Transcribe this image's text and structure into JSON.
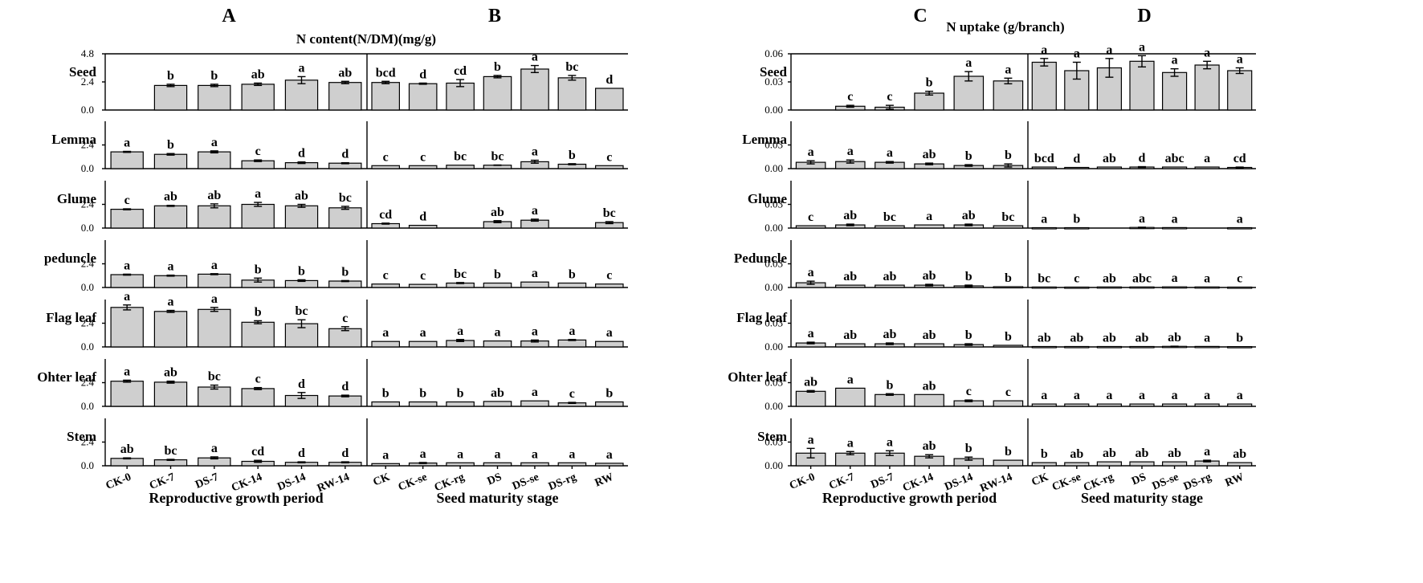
{
  "chart_data": [
    {
      "type": "bar",
      "panel": "A",
      "title": "N content(N/DM)(mg/g)",
      "xlabel": "Reproductive growth period",
      "categories": [
        "CK-0",
        "CK-7",
        "DS-7",
        "CK-14",
        "DS-14",
        "RW-14"
      ],
      "rows": [
        {
          "name": "Seed",
          "ylim": [
            0,
            4.8
          ],
          "ticks": [
            "4.8",
            "2.4",
            "0.0"
          ],
          "values": [
            0,
            2.1,
            2.1,
            2.2,
            2.55,
            2.35
          ],
          "errors": [
            0,
            0.1,
            0.1,
            0.1,
            0.3,
            0.1
          ],
          "labels": [
            "",
            "b",
            "b",
            "ab",
            "a",
            "ab"
          ]
        },
        {
          "name": "Lemma",
          "ylim": [
            0,
            4.8
          ],
          "ticks": [
            "2.4",
            "0.0"
          ],
          "values": [
            1.7,
            1.45,
            1.7,
            0.8,
            0.6,
            0.55
          ],
          "errors": [
            0.05,
            0.08,
            0.1,
            0.08,
            0.08,
            0.05
          ],
          "labels": [
            "a",
            "b",
            "a",
            "c",
            "d",
            "d"
          ]
        },
        {
          "name": "Glume",
          "ylim": [
            0,
            4.8
          ],
          "ticks": [
            "2.4",
            "0.0"
          ],
          "values": [
            1.9,
            2.25,
            2.25,
            2.4,
            2.25,
            2.05
          ],
          "errors": [
            0.05,
            0.05,
            0.2,
            0.2,
            0.15,
            0.15
          ],
          "labels": [
            "c",
            "ab",
            "ab",
            "a",
            "ab",
            "bc"
          ]
        },
        {
          "name": "peduncle",
          "ylim": [
            0,
            4.8
          ],
          "ticks": [
            "2.4",
            "0.0"
          ],
          "values": [
            1.3,
            1.2,
            1.35,
            0.75,
            0.7,
            0.65
          ],
          "errors": [
            0.05,
            0.05,
            0.05,
            0.2,
            0.08,
            0.05
          ],
          "labels": [
            "a",
            "a",
            "a",
            "b",
            "b",
            "b"
          ]
        },
        {
          "name": "Flag leaf",
          "ylim": [
            0,
            4.8
          ],
          "ticks": [
            "2.4",
            "0.0"
          ],
          "values": [
            4.0,
            3.6,
            3.8,
            2.5,
            2.35,
            1.85
          ],
          "errors": [
            0.25,
            0.1,
            0.2,
            0.15,
            0.4,
            0.2
          ],
          "labels": [
            "a",
            "a",
            "a",
            "b",
            "bc",
            "c"
          ]
        },
        {
          "name": "Ohter leaf",
          "ylim": [
            0,
            4.8
          ],
          "ticks": [
            "2.4",
            "0.0"
          ],
          "values": [
            2.55,
            2.45,
            1.95,
            1.8,
            1.1,
            1.05
          ],
          "errors": [
            0.1,
            0.1,
            0.2,
            0.1,
            0.3,
            0.08
          ],
          "labels": [
            "a",
            "ab",
            "bc",
            "c",
            "d",
            "d"
          ]
        },
        {
          "name": "Stem",
          "ylim": [
            0,
            4.8
          ],
          "ticks": [
            "2.4",
            "0.0"
          ],
          "values": [
            0.75,
            0.6,
            0.8,
            0.45,
            0.35,
            0.35
          ],
          "errors": [
            0.05,
            0.05,
            0.1,
            0.1,
            0.05,
            0.05
          ],
          "labels": [
            "ab",
            "bc",
            "a",
            "cd",
            "d",
            "d"
          ]
        }
      ]
    },
    {
      "type": "bar",
      "panel": "B",
      "title": "",
      "xlabel": "Seed maturity stage",
      "categories": [
        "CK",
        "CK-se",
        "CK-rg",
        "DS",
        "DS-se",
        "DS-rg",
        "RW"
      ],
      "rows": [
        {
          "name": "Seed",
          "ylim": [
            0,
            4.8
          ],
          "values": [
            2.35,
            2.25,
            2.3,
            2.85,
            3.5,
            2.75,
            1.85
          ],
          "errors": [
            0.1,
            0.05,
            0.3,
            0.1,
            0.3,
            0.2,
            0
          ],
          "labels": [
            "bcd",
            "d",
            "cd",
            "b",
            "a",
            "bc",
            "d"
          ]
        },
        {
          "name": "Lemma",
          "ylim": [
            0,
            4.8
          ],
          "values": [
            0.3,
            0.3,
            0.35,
            0.35,
            0.7,
            0.45,
            0.3
          ],
          "errors": [
            0,
            0,
            0,
            0.02,
            0.15,
            0.05,
            0
          ],
          "labels": [
            "c",
            "c",
            "bc",
            "bc",
            "a",
            "b",
            "c"
          ]
        },
        {
          "name": "Glume",
          "ylim": [
            0,
            4.8
          ],
          "values": [
            0.45,
            0.28,
            0,
            0.65,
            0.8,
            0,
            0.55
          ],
          "errors": [
            0.05,
            0,
            0,
            0.1,
            0.1,
            0,
            0.1
          ],
          "labels": [
            "cd",
            "d",
            "",
            "ab",
            "a",
            "",
            "bc"
          ]
        },
        {
          "name": "peduncle",
          "ylim": [
            0,
            4.8
          ],
          "values": [
            0.35,
            0.32,
            0.45,
            0.45,
            0.55,
            0.45,
            0.35
          ],
          "errors": [
            0,
            0,
            0.05,
            0,
            0,
            0,
            0
          ],
          "labels": [
            "c",
            "c",
            "bc",
            "b",
            "a",
            "b",
            "c"
          ]
        },
        {
          "name": "Flag leaf",
          "ylim": [
            0,
            4.8
          ],
          "values": [
            0.55,
            0.55,
            0.65,
            0.6,
            0.6,
            0.7,
            0.55
          ],
          "errors": [
            0,
            0,
            0.1,
            0,
            0.1,
            0.05,
            0
          ],
          "labels": [
            "a",
            "a",
            "a",
            "a",
            "a",
            "a",
            "a"
          ]
        },
        {
          "name": "Ohter leaf",
          "ylim": [
            0,
            4.8
          ],
          "values": [
            0.45,
            0.45,
            0.45,
            0.5,
            0.55,
            0.35,
            0.45
          ],
          "errors": [
            0,
            0,
            0,
            0,
            0,
            0.05,
            0
          ],
          "labels": [
            "b",
            "b",
            "b",
            "ab",
            "a",
            "c",
            "b"
          ]
        },
        {
          "name": "Stem",
          "ylim": [
            0,
            4.8
          ],
          "values": [
            0.22,
            0.28,
            0.3,
            0.3,
            0.3,
            0.3,
            0.25
          ],
          "errors": [
            0,
            0.05,
            0,
            0,
            0,
            0,
            0
          ],
          "labels": [
            "a",
            "a",
            "a",
            "a",
            "a",
            "a",
            "a"
          ]
        }
      ]
    },
    {
      "type": "bar",
      "panel": "C",
      "title": "N uptake (g/branch)",
      "xlabel": "Reproductive growth period",
      "categories": [
        "CK-0",
        "CK-7",
        "DS-7",
        "CK-14",
        "DS-14",
        "RW-14"
      ],
      "rows": [
        {
          "name": "Seed",
          "ylim": [
            0,
            0.06
          ],
          "ticks": [
            "0.06",
            "0.03",
            "0.00"
          ],
          "values": [
            0,
            0.004,
            0.003,
            0.018,
            0.036,
            0.031
          ],
          "errors": [
            0,
            0.001,
            0.002,
            0.002,
            0.005,
            0.003
          ],
          "labels": [
            "",
            "c",
            "c",
            "b",
            "a",
            "a"
          ]
        },
        {
          "name": "Lemma",
          "ylim": [
            0,
            0.06
          ],
          "ticks": [
            "0.03",
            "0.00"
          ],
          "values": [
            0.008,
            0.009,
            0.008,
            0.006,
            0.004,
            0.004
          ],
          "errors": [
            0.002,
            0.002,
            0.001,
            0.001,
            0.001,
            0.002
          ],
          "labels": [
            "a",
            "a",
            "a",
            "ab",
            "b",
            "b"
          ]
        },
        {
          "name": "Glume",
          "ylim": [
            0,
            0.06
          ],
          "ticks": [
            "0.03",
            "0.00"
          ],
          "values": [
            0.003,
            0.004,
            0.003,
            0.004,
            0.004,
            0.003
          ],
          "errors": [
            0,
            0.001,
            0,
            0,
            0.001,
            0
          ],
          "labels": [
            "c",
            "ab",
            "bc",
            "a",
            "ab",
            "bc"
          ]
        },
        {
          "name": "Peduncle",
          "ylim": [
            0,
            0.06
          ],
          "ticks": [
            "0.03",
            "0.00"
          ],
          "values": [
            0.006,
            0.003,
            0.003,
            0.003,
            0.002,
            0.001
          ],
          "errors": [
            0.002,
            0,
            0,
            0.001,
            0.001,
            0
          ],
          "labels": [
            "a",
            "ab",
            "ab",
            "ab",
            "b",
            "b"
          ]
        },
        {
          "name": "Flag leaf",
          "ylim": [
            0,
            0.06
          ],
          "ticks": [
            "0.03",
            "0.00"
          ],
          "values": [
            0.005,
            0.004,
            0.004,
            0.004,
            0.003,
            0.002
          ],
          "errors": [
            0.001,
            0,
            0.001,
            0,
            0.001,
            0
          ],
          "labels": [
            "a",
            "ab",
            "ab",
            "ab",
            "b",
            "b"
          ]
        },
        {
          "name": "Ohter leaf",
          "ylim": [
            0,
            0.06
          ],
          "ticks": [
            "0.03",
            "0.00"
          ],
          "values": [
            0.019,
            0.023,
            0.015,
            0.015,
            0.007,
            0.007
          ],
          "errors": [
            0.001,
            0,
            0.001,
            0,
            0.001,
            0
          ],
          "labels": [
            "ab",
            "a",
            "b",
            "ab",
            "c",
            "c"
          ]
        },
        {
          "name": "Stem",
          "ylim": [
            0,
            0.06
          ],
          "ticks": [
            "0.03",
            "0.00"
          ],
          "values": [
            0.016,
            0.016,
            0.016,
            0.012,
            0.009,
            0.007
          ],
          "errors": [
            0.006,
            0.002,
            0.003,
            0.002,
            0.002,
            0
          ],
          "labels": [
            "a",
            "a",
            "a",
            "ab",
            "b",
            "b"
          ]
        }
      ]
    },
    {
      "type": "bar",
      "panel": "D",
      "title": "",
      "xlabel": "Seed maturity stage",
      "categories": [
        "CK",
        "CK-se",
        "CK-rg",
        "DS",
        "DS-se",
        "DS-rg",
        "RW"
      ],
      "rows": [
        {
          "name": "Seed",
          "ylim": [
            0,
            0.06
          ],
          "values": [
            0.051,
            0.042,
            0.045,
            0.052,
            0.04,
            0.048,
            0.042
          ],
          "errors": [
            0.004,
            0.009,
            0.01,
            0.006,
            0.004,
            0.004,
            0.003
          ],
          "labels": [
            "a",
            "a",
            "a",
            "a",
            "a",
            "a",
            "a"
          ]
        },
        {
          "name": "Lemma",
          "ylim": [
            0,
            0.06
          ],
          "values": [
            0.002,
            0.0015,
            0.002,
            0.002,
            0.002,
            0.002,
            0.0015
          ],
          "errors": [
            0,
            0,
            0,
            0.0005,
            0,
            0,
            0.0005
          ],
          "labels": [
            "bcd",
            "d",
            "ab",
            "d",
            "abc",
            "a",
            "cd"
          ]
        },
        {
          "name": "Glume",
          "ylim": [
            0,
            0.06
          ],
          "values": [
            0.0005,
            0.0005,
            0,
            0.0008,
            0.0006,
            0,
            0.0005
          ],
          "errors": [
            0,
            0,
            0,
            0.0003,
            0,
            0,
            0
          ],
          "labels": [
            "a",
            "b",
            "",
            "a",
            "a",
            "",
            "a"
          ]
        },
        {
          "name": "Peduncle",
          "ylim": [
            0,
            0.06
          ],
          "values": [
            0.0006,
            0.0005,
            0.0007,
            0.0007,
            0.0008,
            0.0007,
            0.0005
          ],
          "errors": [
            0,
            0,
            0,
            0,
            0,
            0,
            0
          ],
          "labels": [
            "bc",
            "c",
            "ab",
            "abc",
            "a",
            "a",
            "c"
          ]
        },
        {
          "name": "Flag leaf",
          "ylim": [
            0,
            0.06
          ],
          "values": [
            0.0005,
            0.0005,
            0.0005,
            0.0005,
            0.0007,
            0.0006,
            0.0004
          ],
          "errors": [
            0,
            0,
            0,
            0,
            0.0002,
            0,
            0
          ],
          "labels": [
            "ab",
            "ab",
            "ab",
            "ab",
            "ab",
            "a",
            "b"
          ]
        },
        {
          "name": "Ohter leaf",
          "ylim": [
            0,
            0.06
          ],
          "values": [
            0.003,
            0.003,
            0.003,
            0.003,
            0.003,
            0.003,
            0.003
          ],
          "errors": [
            0,
            0,
            0,
            0,
            0,
            0,
            0
          ],
          "labels": [
            "a",
            "a",
            "a",
            "a",
            "a",
            "a",
            "a"
          ]
        },
        {
          "name": "Stem",
          "ylim": [
            0,
            0.06
          ],
          "values": [
            0.004,
            0.004,
            0.005,
            0.005,
            0.005,
            0.006,
            0.004
          ],
          "errors": [
            0,
            0,
            0,
            0,
            0,
            0.001,
            0
          ],
          "labels": [
            "b",
            "ab",
            "ab",
            "ab",
            "ab",
            "a",
            "ab"
          ]
        }
      ]
    }
  ]
}
